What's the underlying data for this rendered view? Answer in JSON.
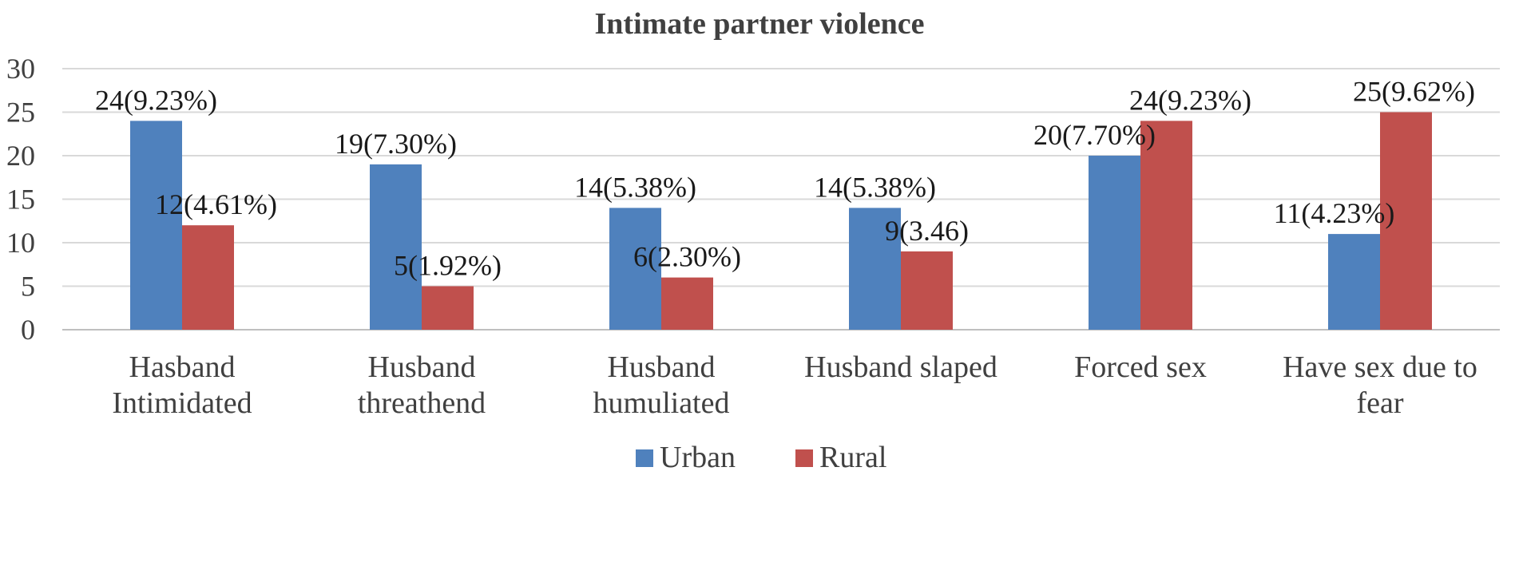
{
  "chart_data": {
    "type": "bar",
    "title": "Intimate partner violence",
    "xlabel": "",
    "ylabel": "",
    "ylim": [
      0,
      30
    ],
    "yticks": [
      "0",
      "5",
      "10",
      "15",
      "20",
      "25",
      "30"
    ],
    "grid": true,
    "legend_position": "bottom",
    "categories": [
      [
        "Hasband",
        "Intimidated"
      ],
      [
        "Husband",
        "threathend"
      ],
      [
        "Husband",
        "humuliated"
      ],
      [
        "Husband slaped"
      ],
      [
        "Forced sex"
      ],
      [
        "Have sex due to",
        "fear"
      ]
    ],
    "series": [
      {
        "name": "Urban",
        "color": "#4f81bd",
        "values": [
          24,
          19,
          14,
          14,
          20,
          11
        ],
        "labels": [
          "24(9.23%)",
          "19(7.30%)",
          "14(5.38%)",
          "14(5.38%)",
          "20(7.70%)",
          "11(4.23%)"
        ]
      },
      {
        "name": "Rural",
        "color": "#c0504d",
        "values": [
          12,
          5,
          6,
          9,
          24,
          25
        ],
        "labels": [
          "12(4.61%)",
          "5(1.92%)",
          "6(2.30%)",
          "9(3.46)",
          "24(9.23%)",
          "25(9.62%)"
        ]
      }
    ]
  }
}
